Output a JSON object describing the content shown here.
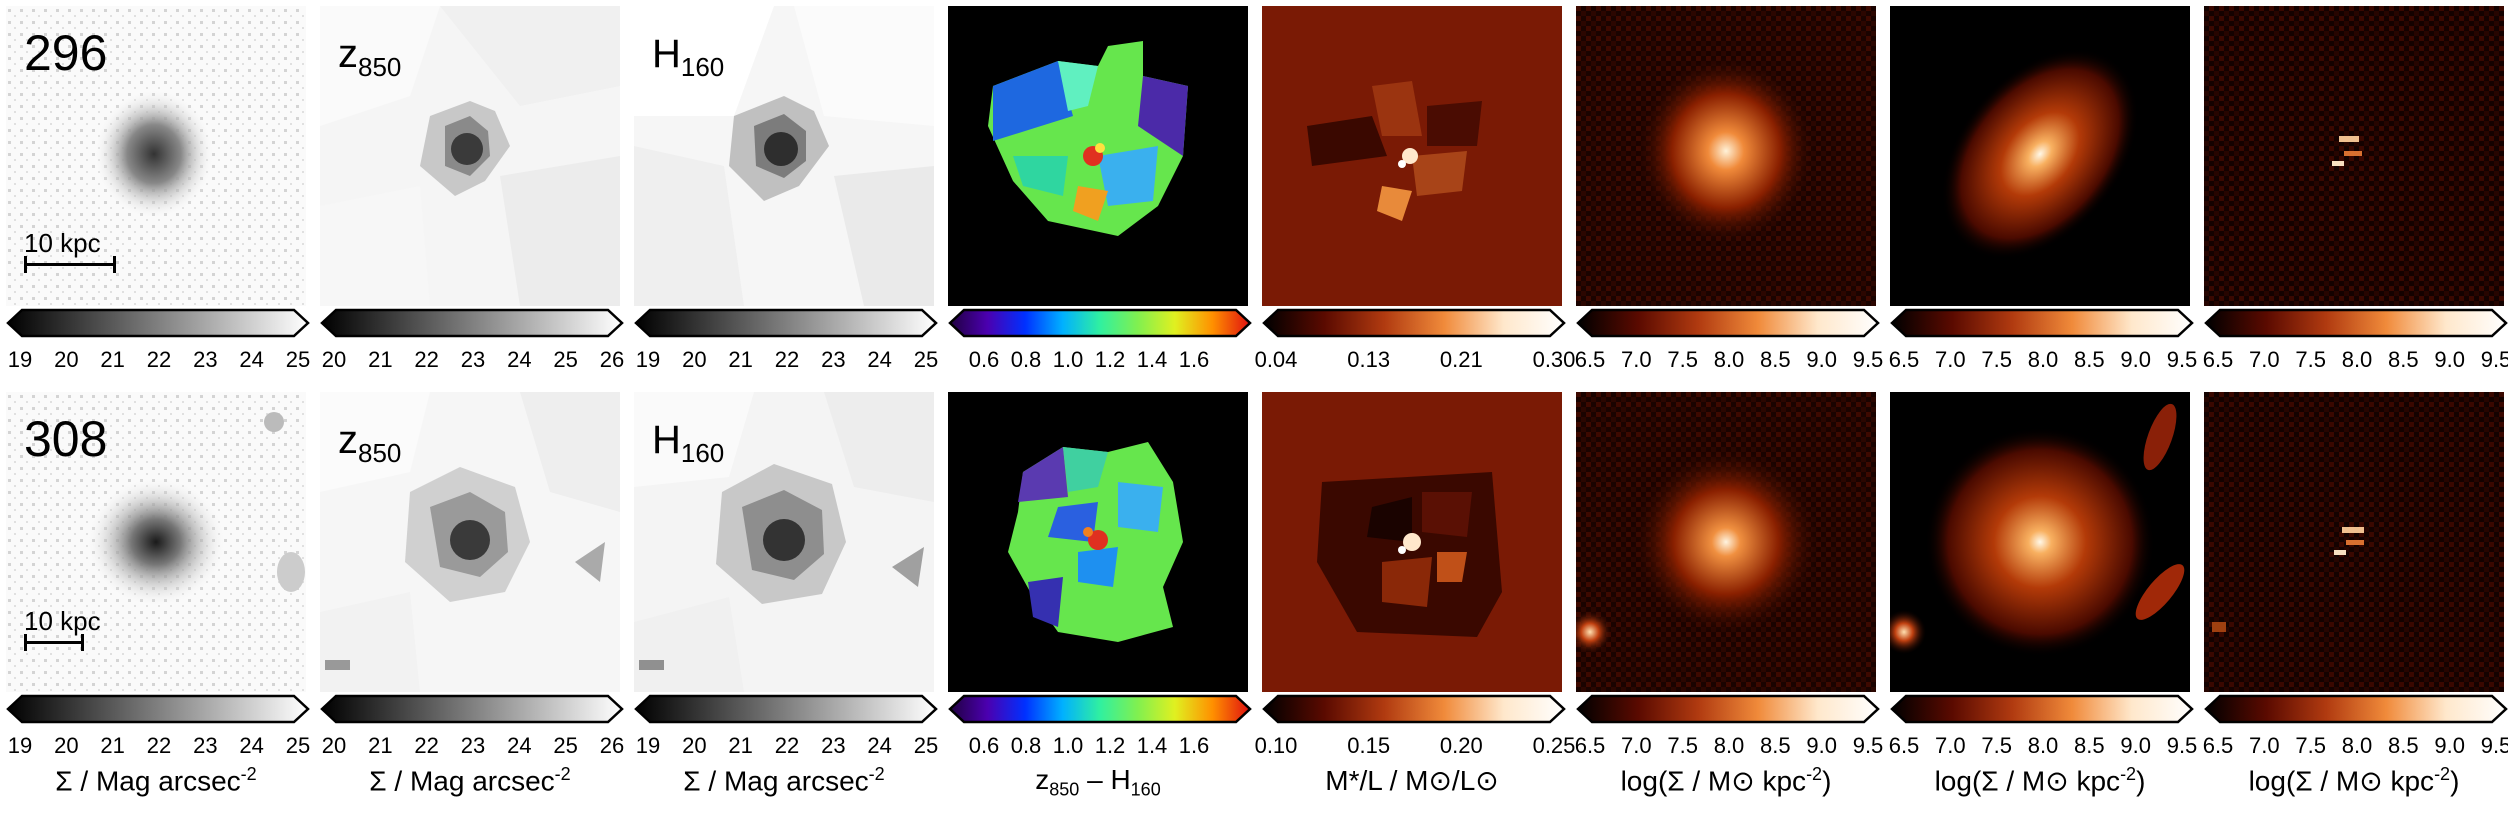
{
  "rows": [
    {
      "id": "296",
      "scalebar_label": "10 kpc"
    },
    {
      "id": "308",
      "scalebar_label": "10 kpc"
    }
  ],
  "band_labels": {
    "z": {
      "base": "z",
      "sub": "850"
    },
    "h": {
      "base": "H",
      "sub": "160"
    }
  },
  "colorbar_ticks": {
    "row1": [
      [
        "19",
        "20",
        "21",
        "22",
        "23",
        "24",
        "25"
      ],
      [
        "20",
        "21",
        "22",
        "23",
        "24",
        "25",
        "26"
      ],
      [
        "19",
        "20",
        "21",
        "22",
        "23",
        "24",
        "25"
      ],
      [
        "0.6",
        "0.8",
        "1.0",
        "1.2",
        "1.4",
        "1.6"
      ],
      [
        "0.04",
        "0.13",
        "0.21",
        "0.30"
      ],
      [
        "6.5",
        "7.0",
        "7.5",
        "8.0",
        "8.5",
        "9.0",
        "9.5"
      ],
      [
        "6.5",
        "7.0",
        "7.5",
        "8.0",
        "8.5",
        "9.0",
        "9.5"
      ],
      [
        "6.5",
        "7.0",
        "7.5",
        "8.0",
        "8.5",
        "9.0",
        "9.5"
      ]
    ],
    "row2": [
      [
        "19",
        "20",
        "21",
        "22",
        "23",
        "24",
        "25"
      ],
      [
        "20",
        "21",
        "22",
        "23",
        "24",
        "25",
        "26"
      ],
      [
        "19",
        "20",
        "21",
        "22",
        "23",
        "24",
        "25"
      ],
      [
        "0.6",
        "0.8",
        "1.0",
        "1.2",
        "1.4",
        "1.6"
      ],
      [
        "0.10",
        "0.15",
        "0.20",
        "0.25"
      ],
      [
        "6.5",
        "7.0",
        "7.5",
        "8.0",
        "8.5",
        "9.0",
        "9.5"
      ],
      [
        "6.5",
        "7.0",
        "7.5",
        "8.0",
        "8.5",
        "9.0",
        "9.5"
      ],
      [
        "6.5",
        "7.0",
        "7.5",
        "8.0",
        "8.5",
        "9.0",
        "9.5"
      ]
    ]
  },
  "axis_labels": {
    "sb": {
      "base": "Σ / Mag arcsec",
      "sup": "-2"
    },
    "color": {
      "a": "z",
      "a_sub": "850",
      "mid": " – H",
      "b_sub": "160"
    },
    "ml": {
      "text": "M*/L / M⊙/L⊙"
    },
    "mass": {
      "base": "log(Σ / M⊙ kpc",
      "sup": "-2",
      "end": ")"
    }
  },
  "colors": {
    "grey_low": "#000000",
    "grey_high": "#ffffff",
    "heat": [
      "#000000",
      "#5a0a00",
      "#b03a10",
      "#f08a3a",
      "#ffe8cc",
      "#ffffff"
    ],
    "rainbow": [
      "#200040",
      "#4b00b0",
      "#0030ff",
      "#00b0ff",
      "#30f0a0",
      "#80f050",
      "#e0f020",
      "#ff9000",
      "#e01010"
    ],
    "ml_background": "#7a1a05"
  }
}
